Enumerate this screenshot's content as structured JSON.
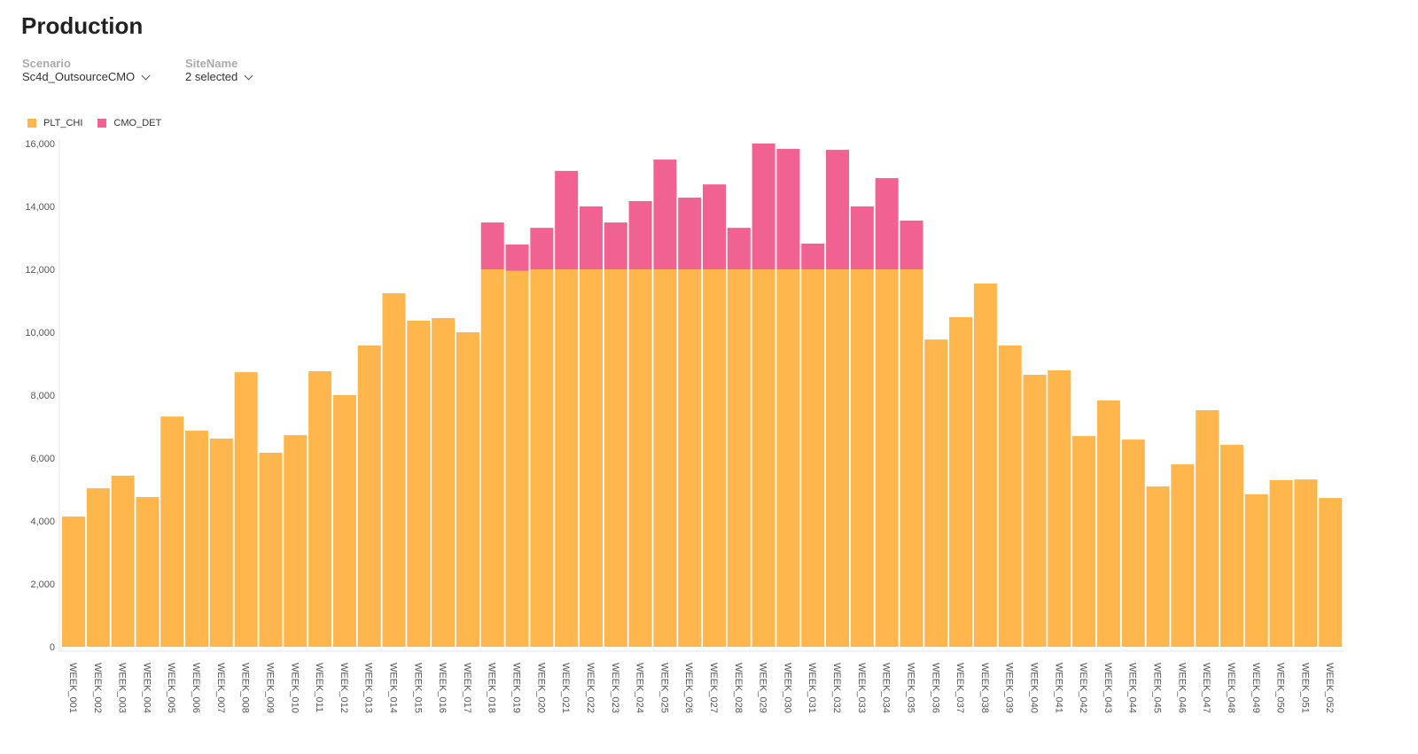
{
  "page": {
    "title": "Production"
  },
  "filters": [
    {
      "label": "Scenario",
      "value": "Sc4d_OutsourceCMO"
    },
    {
      "label": "SiteName",
      "value": "2 selected"
    }
  ],
  "chart_data": {
    "type": "bar",
    "stacked": true,
    "legend_placement": "top-left",
    "grid": false,
    "ylim": [
      0,
      16000
    ],
    "yticks": [
      "0",
      "2,000",
      "4,000",
      "6,000",
      "8,000",
      "10,000",
      "12,000",
      "14,000",
      "16,000"
    ],
    "categories": [
      "WEEK_001",
      "WEEK_002",
      "WEEK_003",
      "WEEK_004",
      "WEEK_005",
      "WEEK_006",
      "WEEK_007",
      "WEEK_008",
      "WEEK_009",
      "WEEK_010",
      "WEEK_011",
      "WEEK_012",
      "WEEK_013",
      "WEEK_014",
      "WEEK_015",
      "WEEK_016",
      "WEEK_017",
      "WEEK_018",
      "WEEK_019",
      "WEEK_020",
      "WEEK_021",
      "WEEK_022",
      "WEEK_023",
      "WEEK_024",
      "WEEK_025",
      "WEEK_026",
      "WEEK_027",
      "WEEK_028",
      "WEEK_029",
      "WEEK_030",
      "WEEK_031",
      "WEEK_032",
      "WEEK_033",
      "WEEK_034",
      "WEEK_035",
      "WEEK_036",
      "WEEK_037",
      "WEEK_038",
      "WEEK_039",
      "WEEK_040",
      "WEEK_041",
      "WEEK_042",
      "WEEK_043",
      "WEEK_044",
      "WEEK_045",
      "WEEK_046",
      "WEEK_047",
      "WEEK_048",
      "WEEK_049",
      "WEEK_050",
      "WEEK_051",
      "WEEK_052"
    ],
    "series": [
      {
        "name": "PLT_CHI",
        "color": "#FFB74D",
        "values": [
          4140,
          5040,
          5440,
          4760,
          7320,
          6870,
          6620,
          8730,
          6170,
          6730,
          8760,
          8000,
          9580,
          11240,
          10370,
          10450,
          10000,
          12000,
          11950,
          12000,
          12000,
          12000,
          12000,
          12000,
          12000,
          12000,
          12000,
          12000,
          12000,
          12000,
          12000,
          12000,
          12000,
          12000,
          12000,
          9770,
          10480,
          11550,
          9580,
          8650,
          8790,
          6700,
          7830,
          6590,
          5100,
          5800,
          7520,
          6420,
          4850,
          5300,
          5320,
          4730
        ]
      },
      {
        "name": "CMO_DET",
        "color": "#F06292",
        "values": [
          0,
          0,
          0,
          0,
          0,
          0,
          0,
          0,
          0,
          0,
          0,
          0,
          0,
          0,
          0,
          0,
          0,
          1490,
          840,
          1320,
          3130,
          2000,
          1490,
          2170,
          3490,
          2280,
          2700,
          1320,
          4000,
          3830,
          820,
          3800,
          2000,
          2900,
          1550,
          0,
          0,
          0,
          0,
          0,
          0,
          0,
          0,
          0,
          0,
          0,
          0,
          0,
          0,
          0,
          0,
          0
        ]
      }
    ]
  }
}
